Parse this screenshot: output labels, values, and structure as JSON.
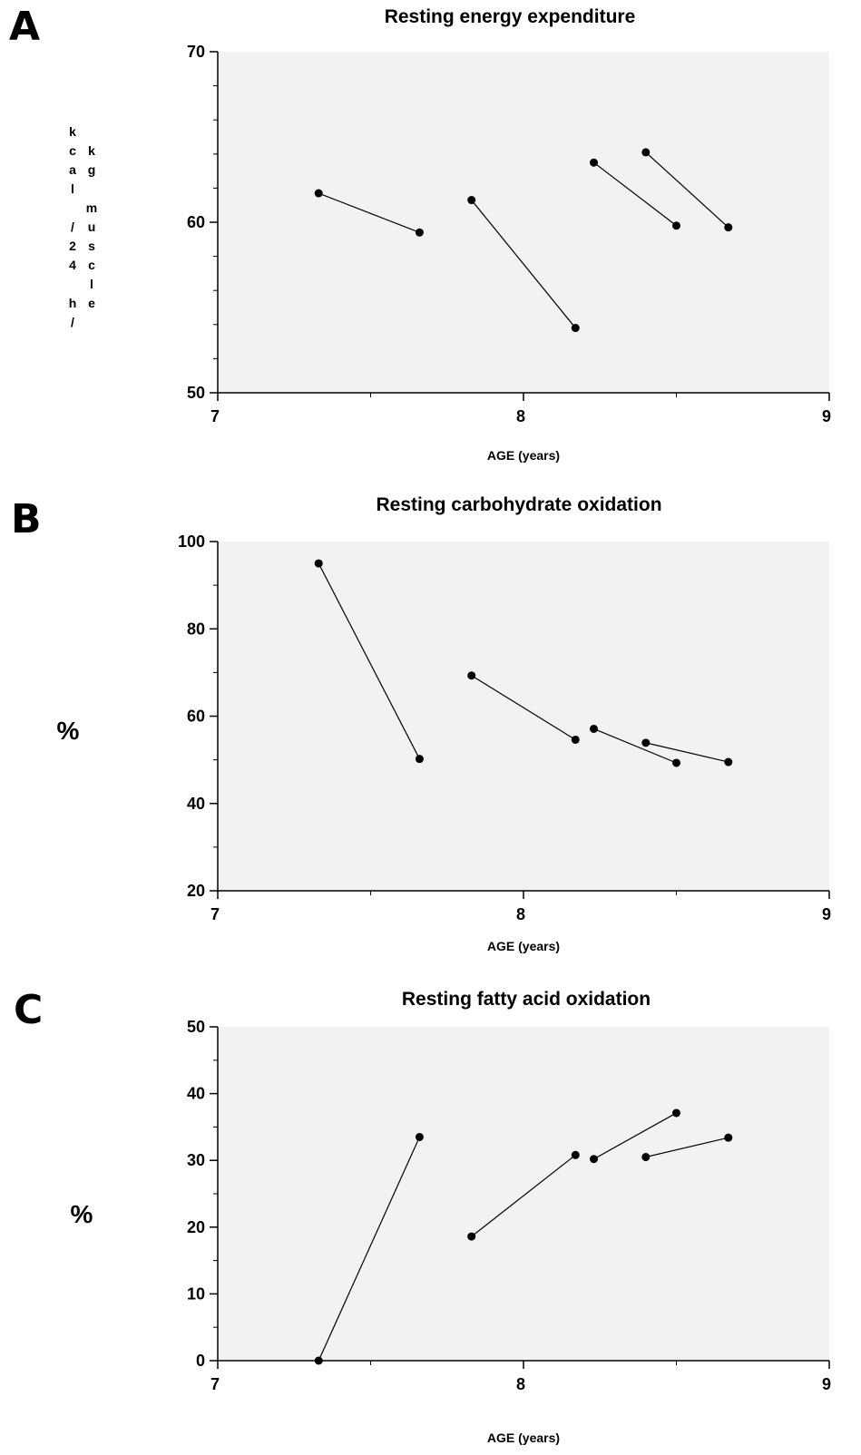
{
  "chart_data": [
    {
      "type": "line",
      "panel": "A",
      "title": "Resting energy expenditure",
      "xlabel": "AGE (years)",
      "ylabel_col1": [
        "k",
        "c",
        "a",
        "l",
        "",
        "/",
        "2",
        "4",
        "",
        "h",
        "/"
      ],
      "ylabel_col2": [
        "",
        "k",
        "g",
        "",
        "m",
        "u",
        "s",
        "c",
        "l",
        "e"
      ],
      "xlim": [
        7,
        9
      ],
      "ylim": [
        50,
        70
      ],
      "x_ticks": [
        7,
        8,
        9
      ],
      "y_ticks": [
        50,
        60,
        70
      ],
      "series": [
        {
          "x": [
            7.33,
            7.66
          ],
          "y": [
            61.7,
            59.4
          ]
        },
        {
          "x": [
            7.83,
            8.17
          ],
          "y": [
            61.3,
            53.8
          ]
        },
        {
          "x": [
            8.23,
            8.5
          ],
          "y": [
            63.5,
            59.8
          ]
        },
        {
          "x": [
            8.4,
            8.67
          ],
          "y": [
            64.1,
            59.7
          ]
        }
      ]
    },
    {
      "type": "line",
      "panel": "B",
      "title": "Resting carbohydrate oxidation",
      "xlabel": "AGE (years)",
      "ylabel": "%",
      "xlim": [
        7,
        9
      ],
      "ylim": [
        20,
        100
      ],
      "x_ticks": [
        7,
        8,
        9
      ],
      "y_ticks": [
        20,
        40,
        60,
        80,
        100
      ],
      "series": [
        {
          "x": [
            7.33,
            7.66
          ],
          "y": [
            95,
            50.2
          ]
        },
        {
          "x": [
            7.83,
            8.17
          ],
          "y": [
            69.3,
            54.6
          ]
        },
        {
          "x": [
            8.23,
            8.5
          ],
          "y": [
            57.1,
            49.3
          ]
        },
        {
          "x": [
            8.4,
            8.67
          ],
          "y": [
            53.9,
            49.5
          ]
        }
      ]
    },
    {
      "type": "line",
      "panel": "C",
      "title": "Resting fatty acid oxidation",
      "xlabel": "AGE (years)",
      "ylabel": "%",
      "xlim": [
        7,
        9
      ],
      "ylim": [
        0,
        50
      ],
      "x_ticks": [
        7,
        8,
        9
      ],
      "y_ticks": [
        0,
        10,
        20,
        30,
        40,
        50
      ],
      "series": [
        {
          "x": [
            7.33,
            7.66
          ],
          "y": [
            0,
            33.5
          ]
        },
        {
          "x": [
            7.83,
            8.17
          ],
          "y": [
            18.6,
            30.8
          ]
        },
        {
          "x": [
            8.23,
            8.5
          ],
          "y": [
            30.2,
            37.1
          ]
        },
        {
          "x": [
            8.4,
            8.67
          ],
          "y": [
            30.5,
            33.4
          ]
        }
      ]
    }
  ]
}
